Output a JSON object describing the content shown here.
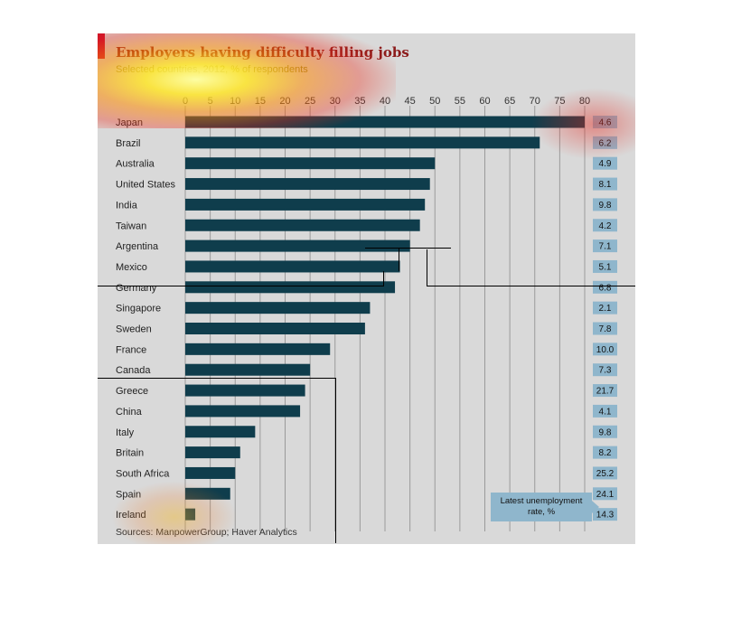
{
  "header": {
    "title": "Employers having difficulty filling jobs",
    "subtitle": "Selected countries, 2012, % of respondents"
  },
  "footer": {
    "source": "Sources: ManpowerGroup; Haver Analytics"
  },
  "legend": {
    "unemployment_label": "Latest unemployment rate, %"
  },
  "colors": {
    "bar": "#0f3d4c",
    "unemployment_box": "#8fb6cc",
    "panel": "#d9d9d9",
    "accent": "#c8102e"
  },
  "chart_data": {
    "type": "bar",
    "orientation": "horizontal",
    "title": "Employers having difficulty filling jobs",
    "subtitle": "Selected countries, 2012, % of respondents",
    "xlim": [
      0,
      80
    ],
    "ticks": [
      0,
      5,
      10,
      15,
      20,
      25,
      30,
      35,
      40,
      45,
      50,
      55,
      60,
      65,
      70,
      75,
      80
    ],
    "grid": true,
    "categories": [
      "Japan",
      "Brazil",
      "Australia",
      "United States",
      "India",
      "Taiwan",
      "Argentina",
      "Mexico",
      "Germany",
      "Singapore",
      "Sweden",
      "France",
      "Canada",
      "Greece",
      "China",
      "Italy",
      "Britain",
      "South Africa",
      "Spain",
      "Ireland"
    ],
    "values": [
      80,
      71,
      50,
      49,
      48,
      47,
      45,
      43,
      42,
      37,
      36,
      29,
      25,
      24,
      23,
      14,
      11,
      10,
      9,
      2
    ],
    "unemployment": [
      "4.6",
      "6.2",
      "4.9",
      "8.1",
      "9.8",
      "4.2",
      "7.1",
      "5.1",
      "6.8",
      "2.1",
      "7.8",
      "10.0",
      "7.3",
      "21.7",
      "4.1",
      "9.8",
      "8.2",
      "25.2",
      "24.1",
      "14.3"
    ]
  }
}
